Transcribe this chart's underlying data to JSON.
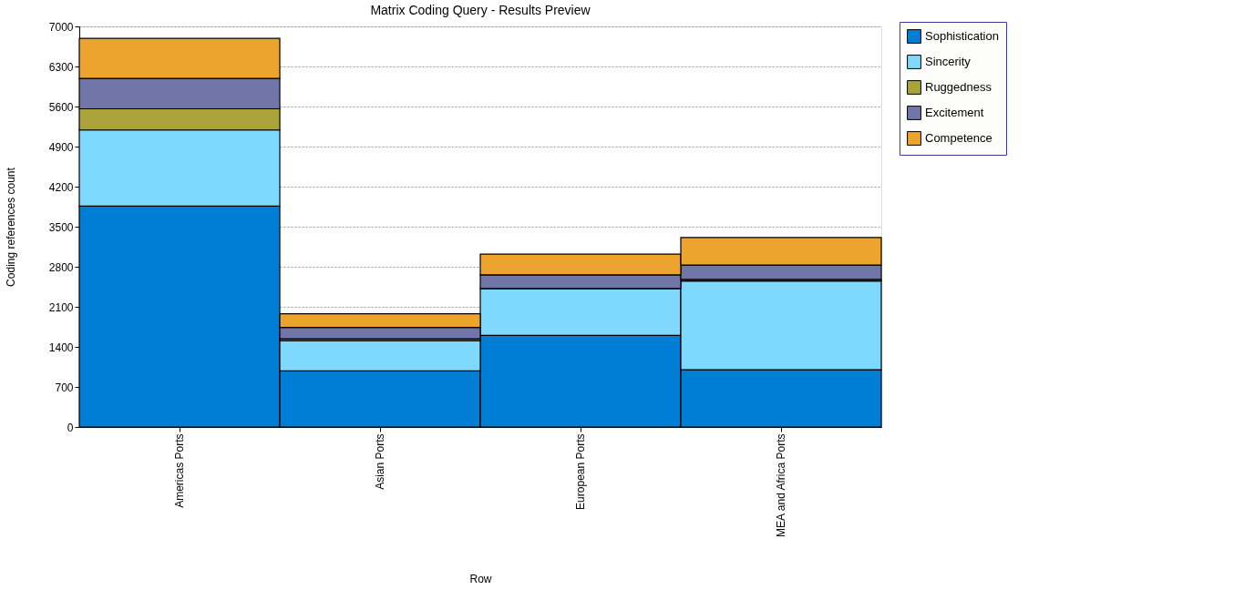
{
  "chart_data": {
    "type": "bar",
    "title": "Matrix Coding Query - Results Preview",
    "xlabel": "Row",
    "ylabel": "Coding references count",
    "categories": [
      "Americas Ports",
      "Asian Ports",
      "European Ports",
      "MEA and Africa Ports"
    ],
    "stacked": true,
    "series": [
      {
        "name": "Sophistication",
        "color": "#007ed6",
        "values": [
          3860,
          980,
          1600,
          1000
        ]
      },
      {
        "name": "Sincerity",
        "color": "#7fd8fd",
        "values": [
          1330,
          530,
          820,
          1550
        ]
      },
      {
        "name": "Ruggedness",
        "color": "#aaa33a",
        "values": [
          370,
          30,
          0,
          30
        ]
      },
      {
        "name": "Excitement",
        "color": "#7077a8",
        "values": [
          530,
          200,
          240,
          250
        ]
      },
      {
        "name": "Competence",
        "color": "#eca42e",
        "values": [
          700,
          240,
          360,
          480
        ]
      }
    ],
    "ylim": [
      0,
      7000
    ],
    "yticks": [
      0,
      700,
      1400,
      2100,
      2800,
      3500,
      4200,
      4900,
      5600,
      6300,
      7000
    ],
    "grid": "y",
    "legend": "top right"
  }
}
